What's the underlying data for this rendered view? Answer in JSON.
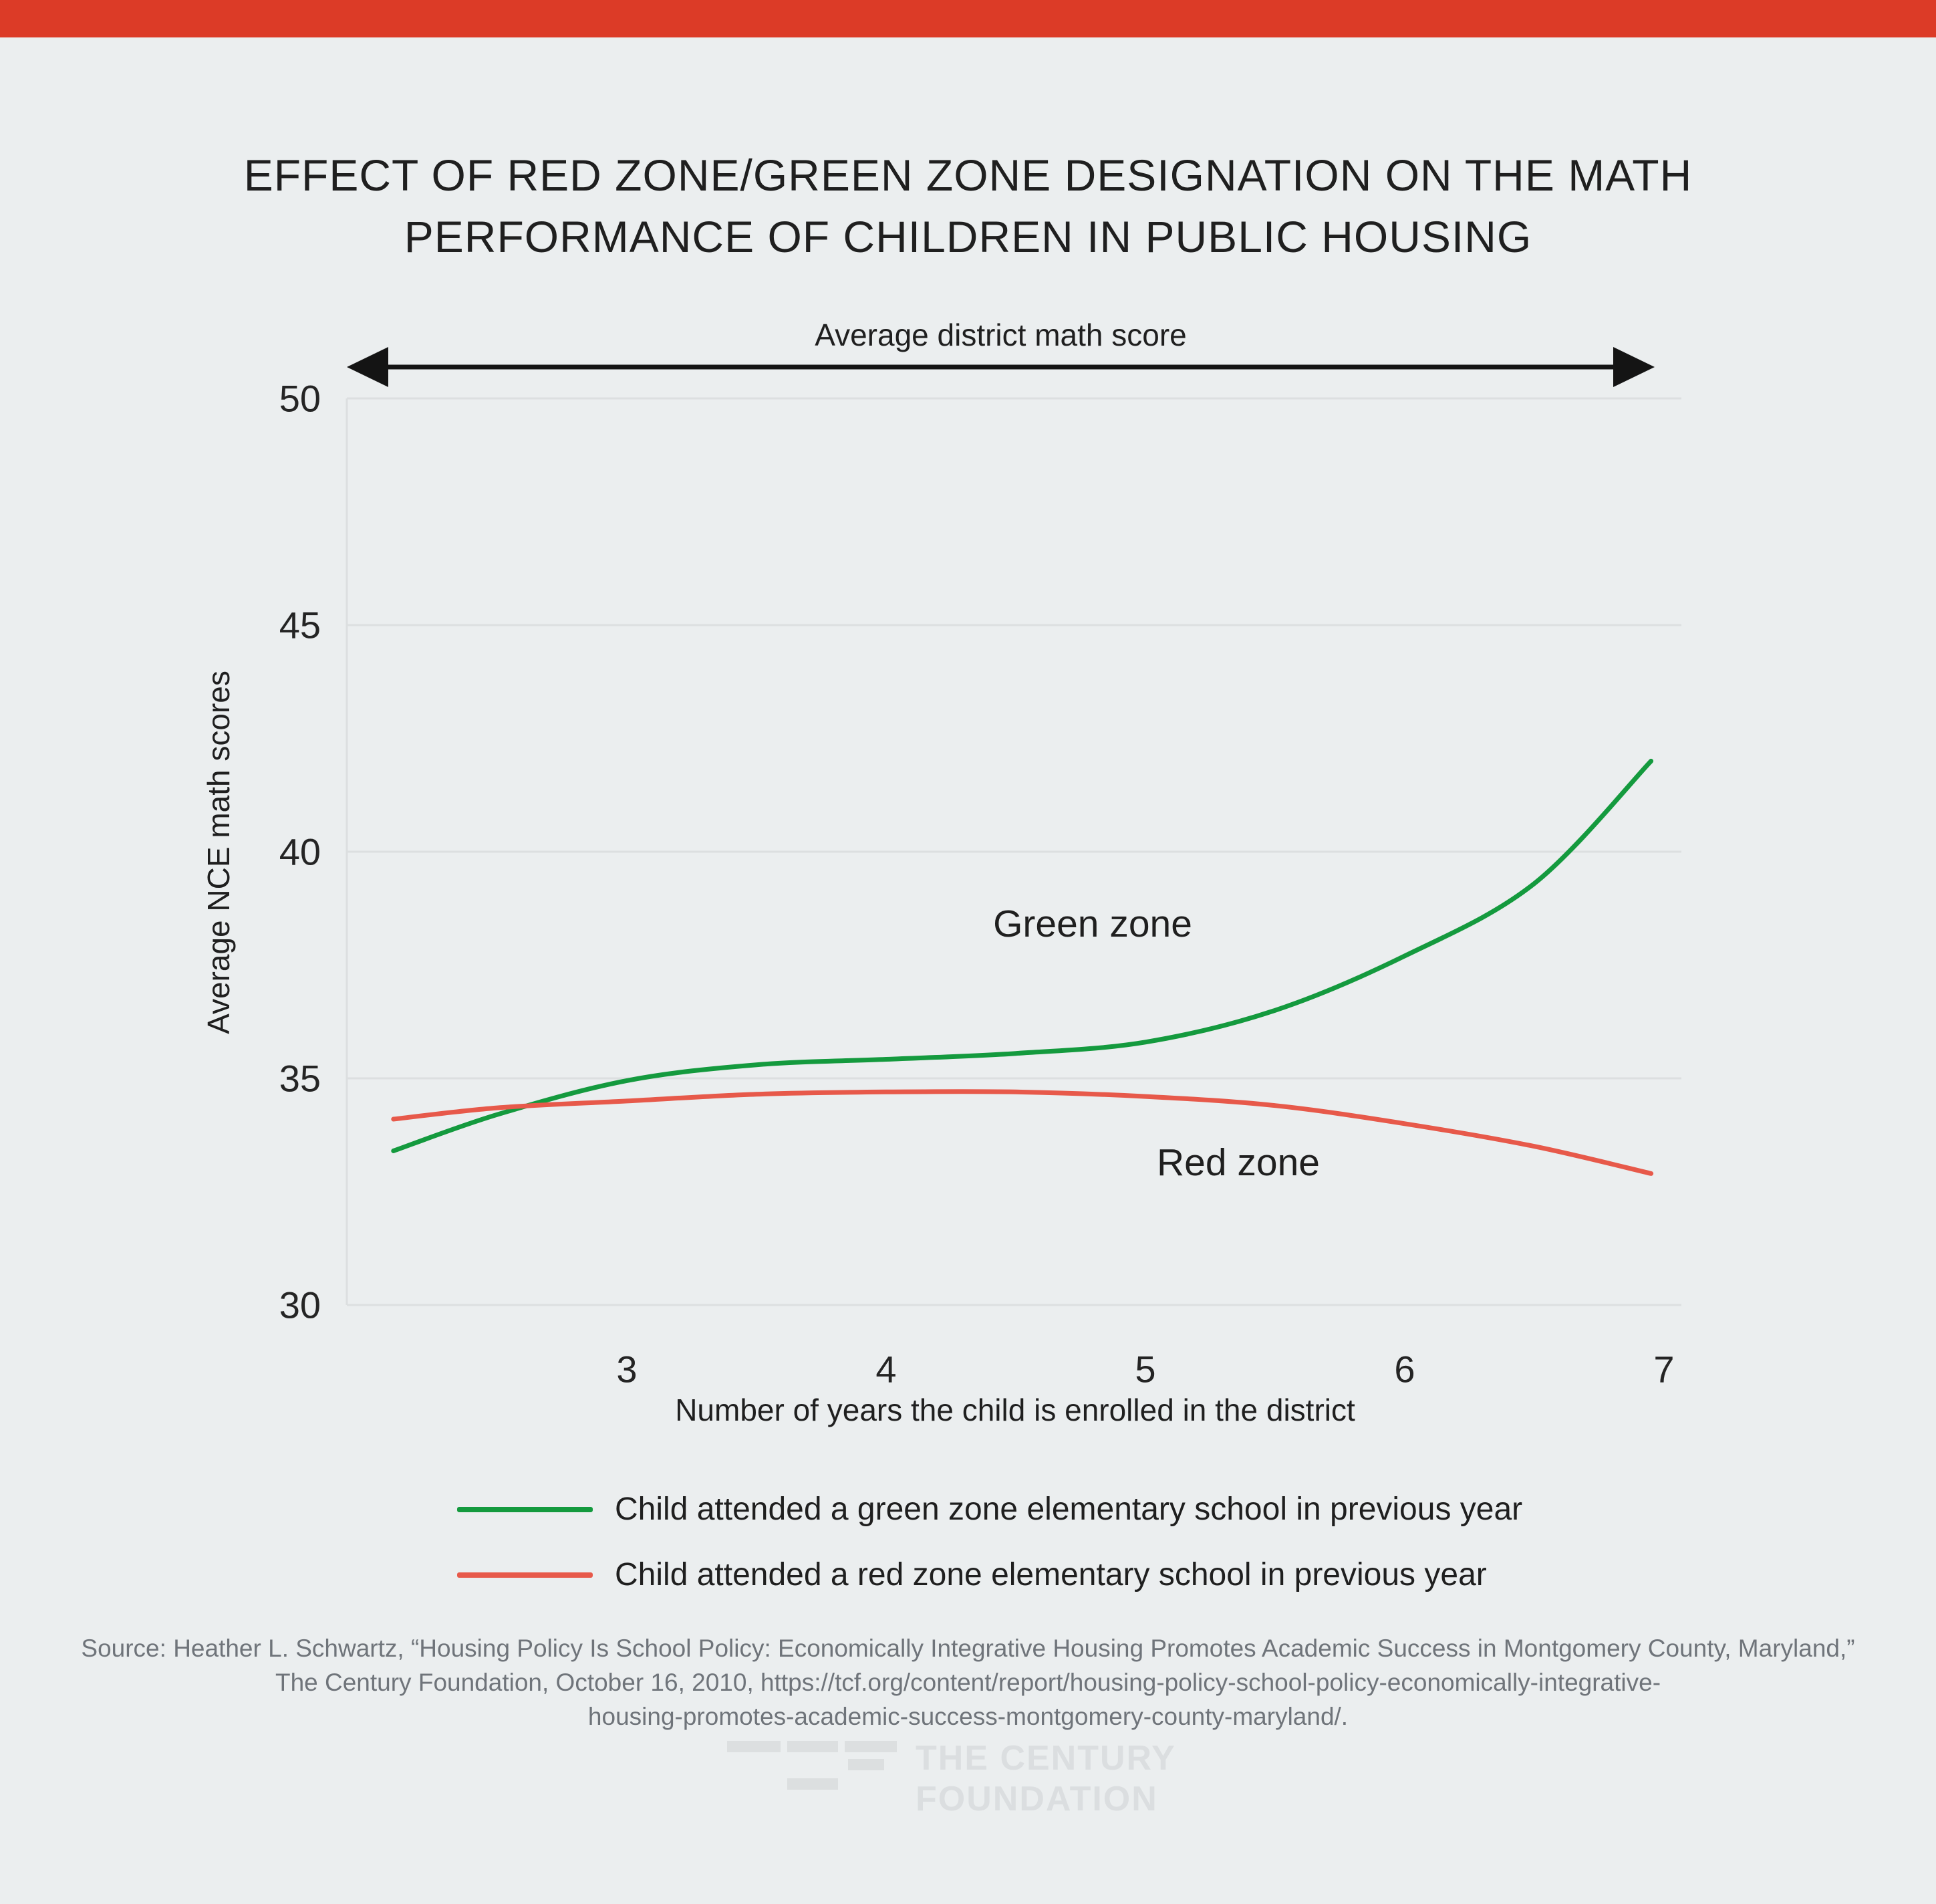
{
  "page": {
    "background": "#ebeeef",
    "top_bar_color": "#dc3b27"
  },
  "title": {
    "line1": "EFFECT OF RED ZONE/GREEN ZONE DESIGNATION ON THE MATH",
    "line2": "PERFORMANCE OF CHILDREN IN PUBLIC HOUSING"
  },
  "chart_data": {
    "type": "line",
    "title": "Effect of red zone/green zone designation on the math performance of children in public housing",
    "top_axis_label": "Average district math score",
    "xlabel": "Number of years the child is enrolled in the district",
    "ylabel": "Average NCE math scores",
    "xticks": [
      3,
      4,
      5,
      6,
      7
    ],
    "yticks": [
      30,
      35,
      40,
      45,
      50
    ],
    "xlim": [
      1.92,
      7.08
    ],
    "ylim": [
      30,
      50
    ],
    "grid": "horizontal",
    "grid_color": "#dcdfe0",
    "legend_position": "bottom",
    "series": [
      {
        "name": "Green zone",
        "legend": "Child attended a green zone elementary school in previous year",
        "color": "#149a3e",
        "x": [
          2.1,
          2.5,
          3.0,
          3.5,
          4.0,
          4.5,
          5.0,
          5.5,
          6.0,
          6.5,
          6.95
        ],
        "y": [
          33.4,
          34.2,
          34.95,
          35.3,
          35.42,
          35.55,
          35.8,
          36.5,
          37.7,
          39.3,
          42.0
        ]
      },
      {
        "name": "Red zone",
        "legend": "Child attended a red zone elementary school in previous year",
        "color": "#e7594a",
        "x": [
          2.1,
          2.5,
          3.0,
          3.5,
          4.0,
          4.5,
          5.0,
          5.5,
          6.0,
          6.5,
          6.95
        ],
        "y": [
          34.1,
          34.35,
          34.5,
          34.65,
          34.7,
          34.7,
          34.6,
          34.4,
          34.0,
          33.5,
          32.9
        ]
      }
    ]
  },
  "source": {
    "line1": "Source: Heather L. Schwartz, “Housing Policy Is School Policy: Economically Integrative Housing Promotes Academic Success in Montgomery County, Maryland,”",
    "line2": "The Century Foundation, October 16, 2010, https://tcf.org/content/report/housing-policy-school-policy-economically-integrative-",
    "line3": "housing-promotes-academic-success-montgomery-county-maryland/."
  },
  "logo": {
    "name_line1": "THE CENTURY",
    "name_line2": "FOUNDATION"
  }
}
